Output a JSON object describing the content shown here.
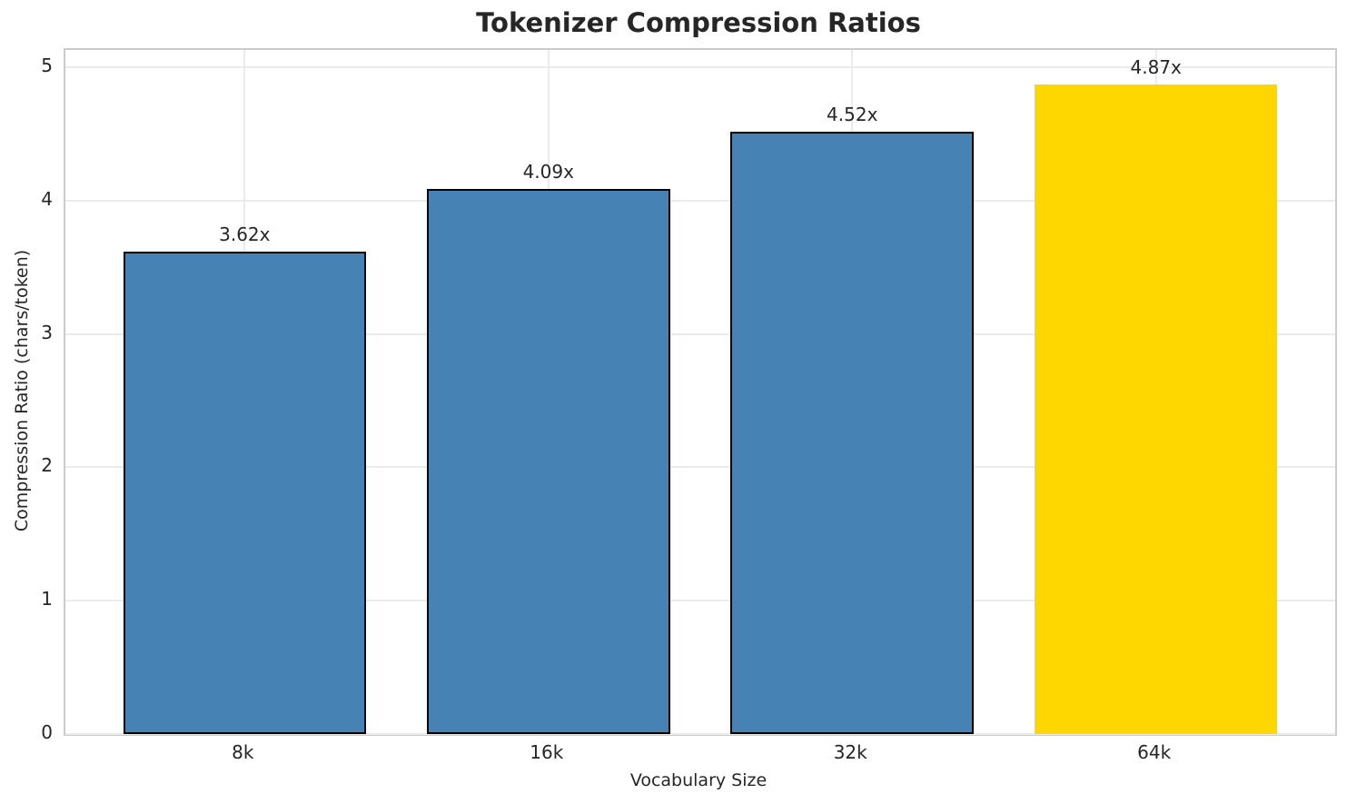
{
  "chart_data": {
    "type": "bar",
    "title": "Tokenizer Compression Ratios",
    "xlabel": "Vocabulary Size",
    "ylabel": "Compression Ratio (chars/token)",
    "categories": [
      "8k",
      "16k",
      "32k",
      "64k"
    ],
    "values": [
      3.62,
      4.09,
      4.52,
      4.87
    ],
    "bar_labels": [
      "3.62x",
      "4.09x",
      "4.52x",
      "4.87x"
    ],
    "bar_colors": [
      "#4682B4",
      "#4682B4",
      "#4682B4",
      "#FFD700"
    ],
    "bar_edge_colors": [
      "#000000",
      "#000000",
      "#000000",
      "none"
    ],
    "highlighted_category": "64k",
    "yticks": [
      "0",
      "1",
      "2",
      "3",
      "4",
      "5"
    ],
    "ylim": [
      0,
      5.13
    ],
    "x_padding_units": 0.59,
    "bar_width_units": 0.8,
    "grid": true,
    "legend": "none",
    "colors": {
      "bar_default": "#4682B4",
      "bar_highlight": "#FFD700",
      "bar_edge": "#000000",
      "text": "#262626",
      "spine": "#cccccc",
      "gridline": "#ebebeb",
      "background": "#ffffff"
    }
  }
}
